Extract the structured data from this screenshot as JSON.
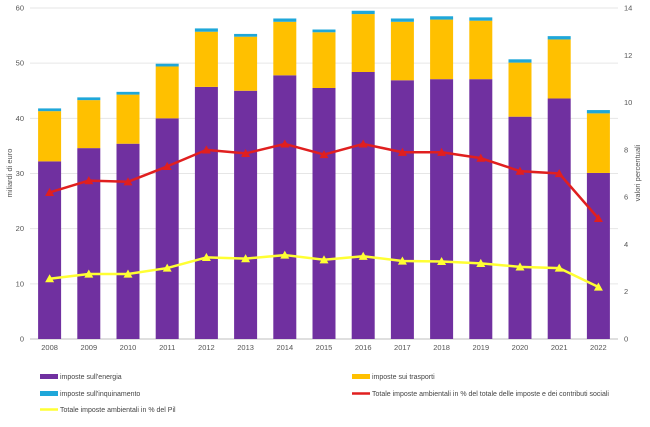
{
  "chart_data": {
    "type": "bar",
    "stacked": true,
    "categories": [
      "2008",
      "2009",
      "2010",
      "2011",
      "2012",
      "2013",
      "2014",
      "2015",
      "2016",
      "2017",
      "2018",
      "2019",
      "2020",
      "2021",
      "2022"
    ],
    "ylabel_left": "miliardi di euro",
    "ylabel_right": "valori percentuali",
    "ylim_left": [
      0,
      60
    ],
    "yticks_left": [
      0,
      10,
      20,
      30,
      40,
      50,
      60
    ],
    "ylim_right": [
      0,
      14
    ],
    "yticks_right": [
      0,
      2,
      4,
      6,
      8,
      10,
      12,
      14
    ],
    "grid": true,
    "legend_position": "bottom",
    "series": [
      {
        "name": "imposte sull'energia",
        "kind": "bar",
        "axis": "left",
        "color": "#7030a0",
        "values": [
          32.2,
          34.6,
          35.4,
          40.0,
          45.7,
          45.0,
          47.8,
          45.5,
          48.4,
          46.9,
          47.1,
          47.1,
          40.3,
          43.6,
          30.1
        ]
      },
      {
        "name": "imposte sui trasporti",
        "kind": "bar",
        "axis": "left",
        "color": "#ffc000",
        "values": [
          9.1,
          8.7,
          8.9,
          9.4,
          10.0,
          9.8,
          9.7,
          10.1,
          10.5,
          10.6,
          10.8,
          10.6,
          9.8,
          10.7,
          10.8
        ]
      },
      {
        "name": "imposte sull'inquinamento",
        "kind": "bar",
        "axis": "left",
        "color": "#1fa7d9",
        "values": [
          0.5,
          0.5,
          0.5,
          0.5,
          0.6,
          0.5,
          0.6,
          0.5,
          0.6,
          0.6,
          0.6,
          0.6,
          0.6,
          0.6,
          0.6
        ]
      },
      {
        "name": "Totale imposte ambientali in % del totale delle imposte e dei contributi sociali",
        "kind": "line",
        "axis": "right",
        "color": "#e01f1f",
        "values": [
          6.2,
          6.7,
          6.65,
          7.3,
          8.0,
          7.85,
          8.25,
          7.8,
          8.25,
          7.9,
          7.9,
          7.65,
          7.1,
          7.0,
          5.1
        ]
      },
      {
        "name": "Totale imposte ambientali in % del Pil",
        "kind": "line",
        "axis": "right",
        "color": "#ffff33",
        "values": [
          2.55,
          2.75,
          2.75,
          3.0,
          3.45,
          3.4,
          3.55,
          3.35,
          3.5,
          3.3,
          3.28,
          3.2,
          3.05,
          3.0,
          2.2
        ]
      }
    ]
  }
}
